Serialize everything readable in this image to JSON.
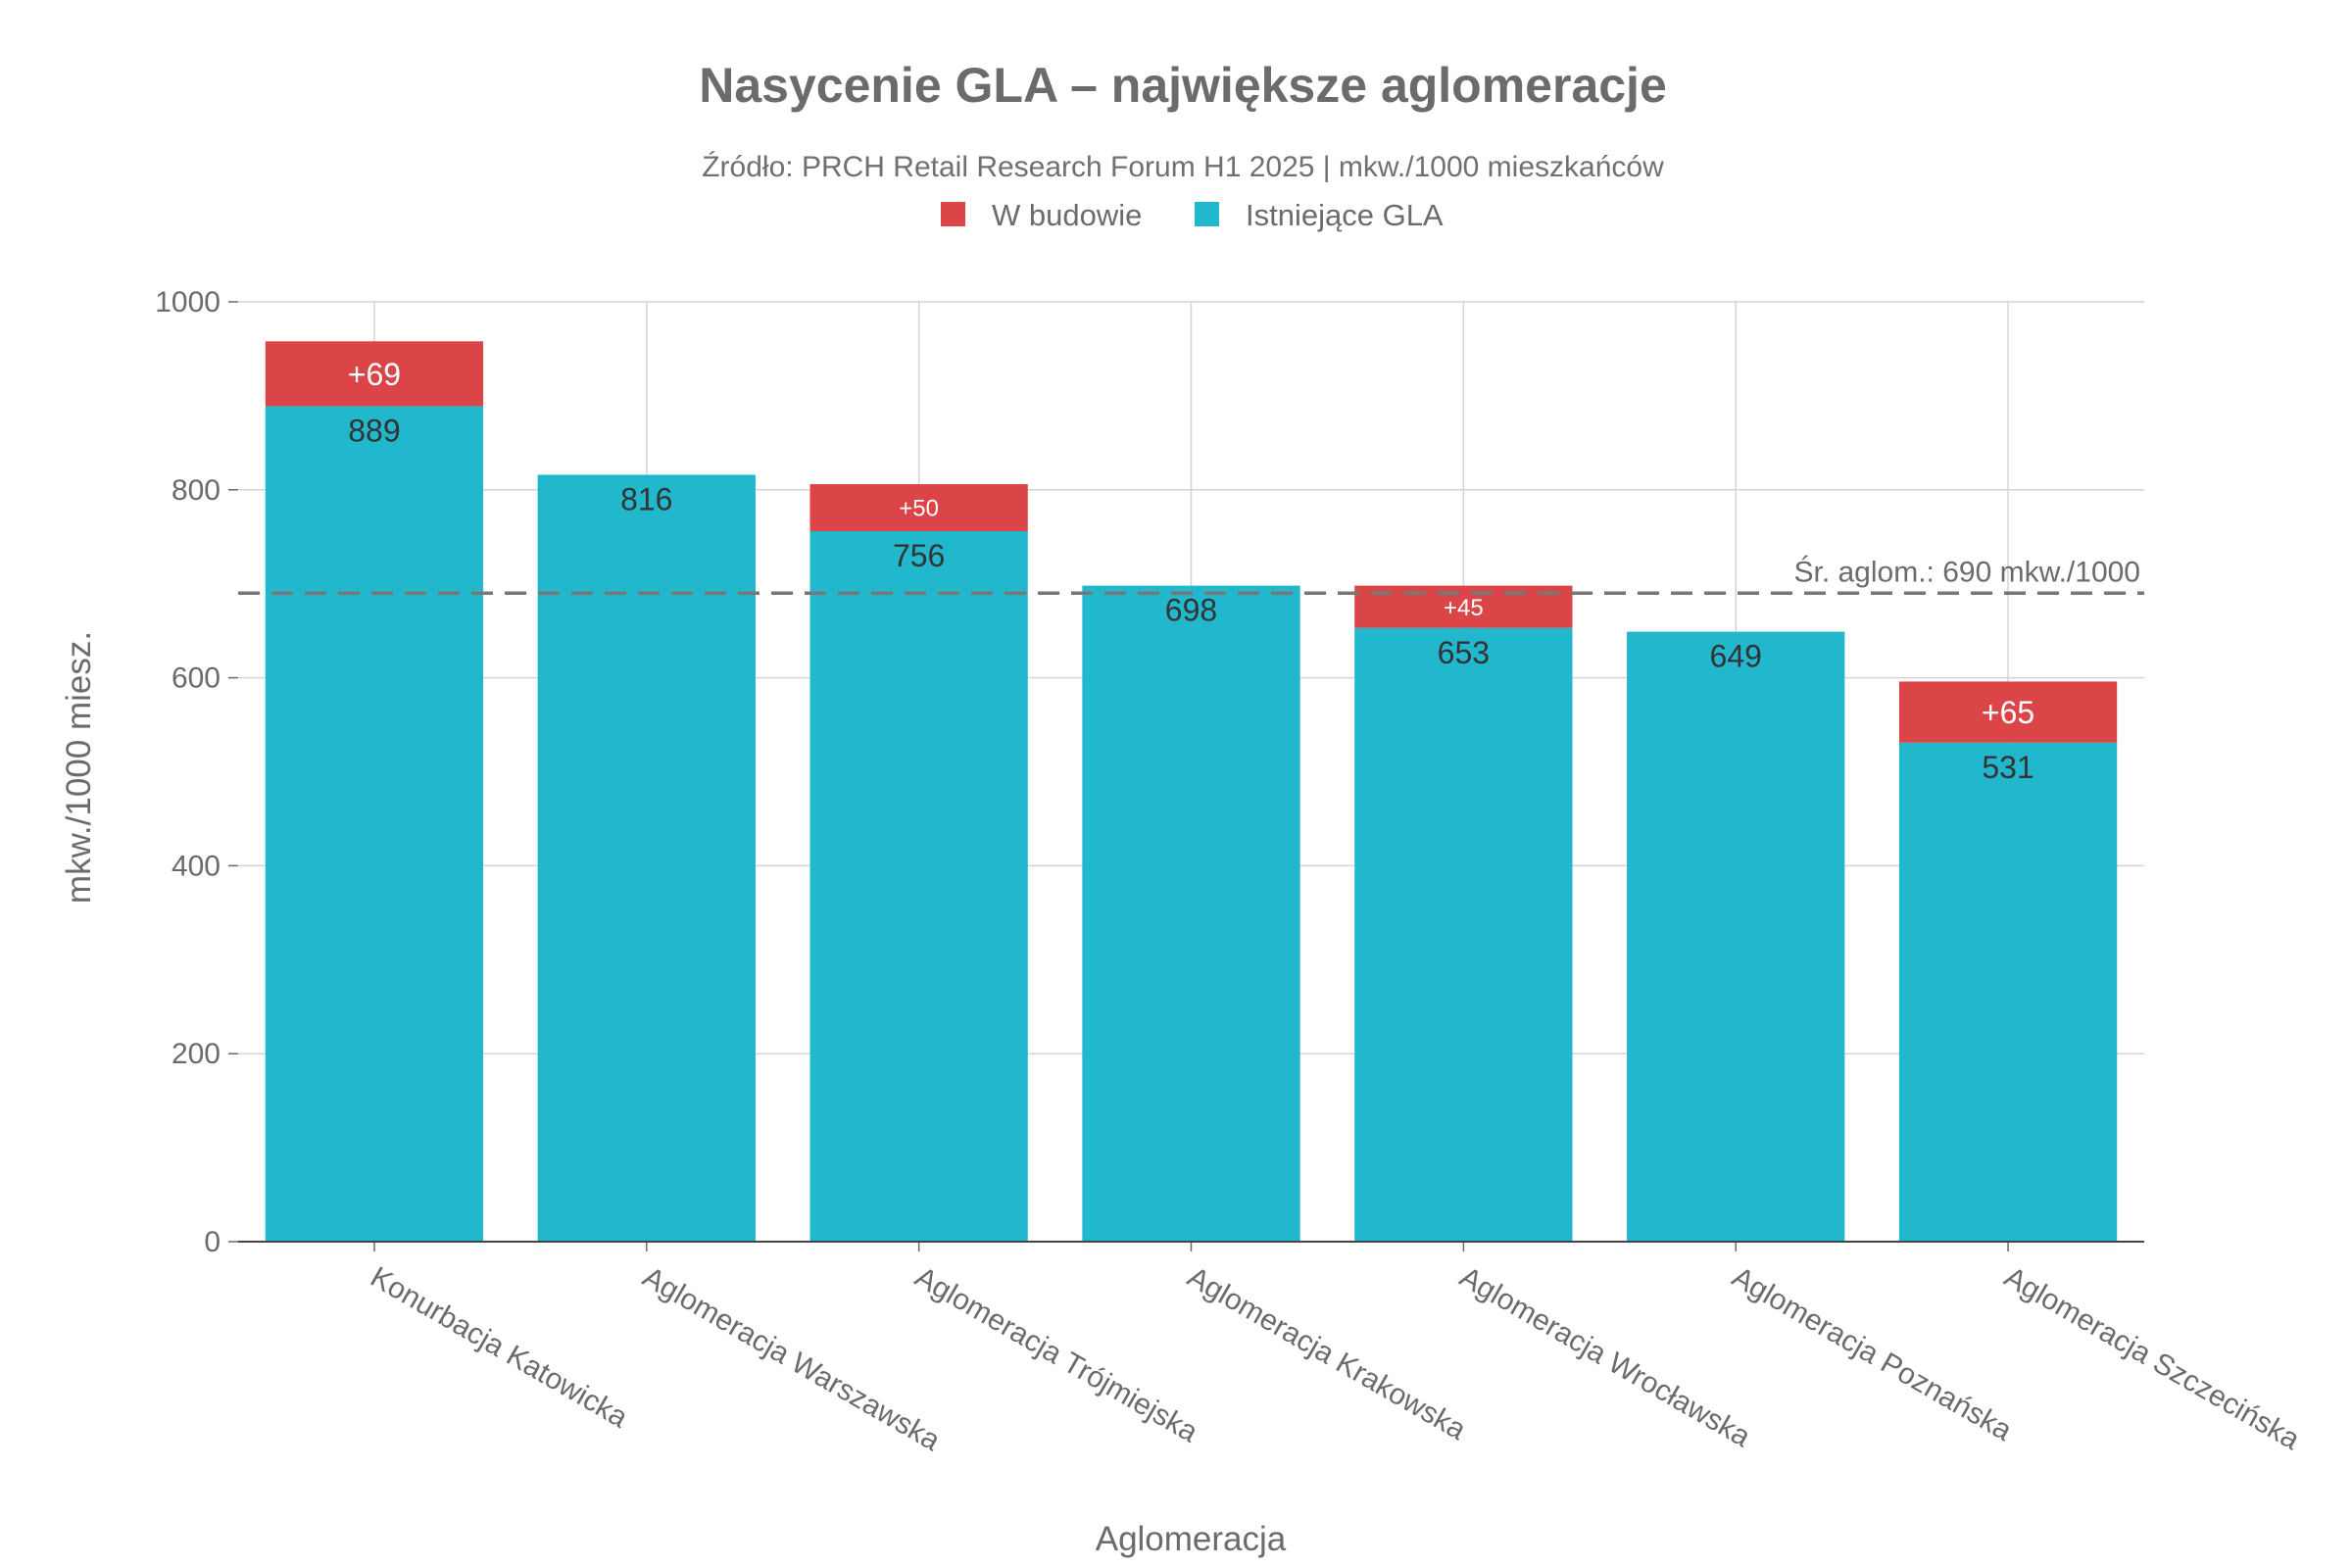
{
  "chart_data": {
    "type": "bar",
    "stacked": true,
    "title": "Nasycenie GLA – największe aglomeracje",
    "subtitle": "Źródło: PRCH Retail Research Forum H1 2025 | mkw./1000 mieszkańców",
    "xlabel": "Aglomeracja",
    "ylabel": "mkw./1000 miesz.",
    "ylim": [
      0,
      1000
    ],
    "yticks": [
      0,
      200,
      400,
      600,
      800,
      1000
    ],
    "grid": true,
    "legend_position": "top-center",
    "categories": [
      "Konurbacja Katowicka",
      "Aglomeracja Warszawska",
      "Aglomeracja Trójmiejska",
      "Aglomeracja Krakowska",
      "Aglomeracja Wrocławska",
      "Aglomeracja Poznańska",
      "Aglomeracja Szczecińska"
    ],
    "series": [
      {
        "name": "Istniejące GLA",
        "color": "#21b7cc",
        "values": [
          889,
          816,
          756,
          698,
          653,
          649,
          531
        ],
        "labels": [
          "889",
          "816",
          "756",
          "698",
          "653",
          "649",
          "531"
        ]
      },
      {
        "name": "W budowie",
        "color": "#db4548",
        "values": [
          69,
          0,
          50,
          0,
          45,
          0,
          65
        ],
        "labels": [
          "+69",
          "",
          "+50",
          "",
          "+45",
          "",
          "+65"
        ]
      }
    ],
    "legend": [
      "W budowie",
      "Istniejące GLA"
    ],
    "reference_line": {
      "value": 690,
      "label": "Śr. aglom.: 690 mkw./1000",
      "style": "dashed",
      "color": "#777777"
    }
  }
}
